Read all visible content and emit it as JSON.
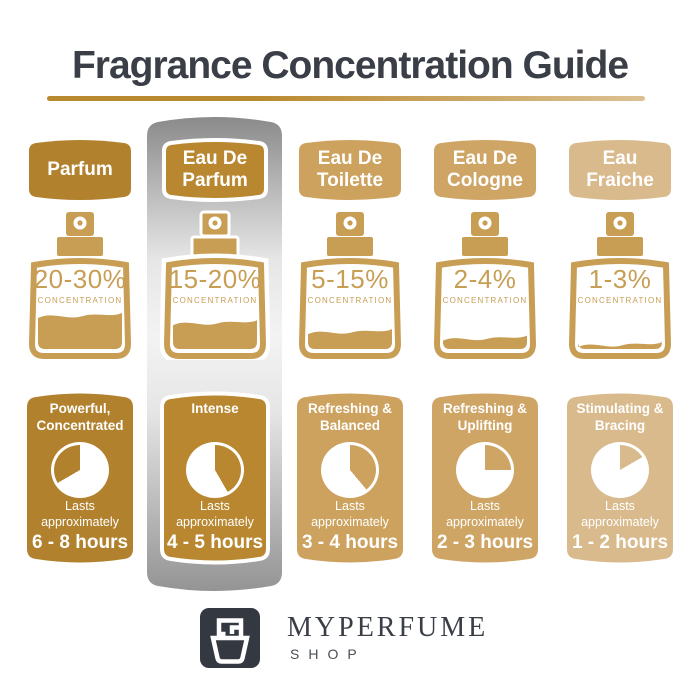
{
  "title": "Fragrance Concentration Guide",
  "colors": {
    "ink": "#3A3E46",
    "line_a": "#B9892F",
    "line_b": "#DCC192",
    "bottle": "#C89E55",
    "logo_bg": "#343841",
    "hl_top": "#8A8A8A",
    "hl_soft": "#E6E6E6",
    "hl_light": "#F3F3F3",
    "hl_bottom": "#949494"
  },
  "columns": [
    {
      "name": "Parfum",
      "color": "#B1812D",
      "highlighted": false,
      "bottle": {
        "percent": "20-30%",
        "concentration_label": "CONCENTRATION",
        "fill_percent": 42
      },
      "card": {
        "trait": "Powerful, Concentrated",
        "lasts": "Lasts approximately",
        "duration": "6 - 8 hours",
        "clock_notch": {
          "start_deg": 240,
          "end_deg": 360
        }
      }
    },
    {
      "name": "Eau De Parfum",
      "color": "#B8872F",
      "highlighted": true,
      "bottle": {
        "percent": "15-20%",
        "concentration_label": "CONCENTRATION",
        "fill_percent": 33
      },
      "card": {
        "trait": "Intense",
        "lasts": "Lasts approximately",
        "duration": "4 - 5 hours",
        "clock_notch": {
          "start_deg": 0,
          "end_deg": 150
        }
      }
    },
    {
      "name": "Eau De Toilette",
      "color": "#CDA25E",
      "highlighted": false,
      "bottle": {
        "percent": "5-15%",
        "concentration_label": "CONCENTRATION",
        "fill_percent": 22
      },
      "card": {
        "trait": "Refreshing & Balanced",
        "lasts": "Lasts approximately",
        "duration": "3 - 4 hours",
        "clock_notch": {
          "start_deg": 0,
          "end_deg": 140
        }
      }
    },
    {
      "name": "Eau De Cologne",
      "color": "#CFA566",
      "highlighted": false,
      "bottle": {
        "percent": "2-4%",
        "concentration_label": "CONCENTRATION",
        "fill_percent": 14
      },
      "card": {
        "trait": "Refreshing & Uplifting",
        "lasts": "Lasts approximately",
        "duration": "2 - 3 hours",
        "clock_notch": {
          "start_deg": 0,
          "end_deg": 90
        }
      }
    },
    {
      "name": "Eau Fraiche",
      "color": "#D9BA8C",
      "highlighted": false,
      "bottle": {
        "percent": "1-3%",
        "concentration_label": "CONCENTRATION",
        "fill_percent": 6
      },
      "card": {
        "trait": "Stimulating & Bracing",
        "lasts": "Lasts approximately",
        "duration": "1 - 2 hours",
        "clock_notch": {
          "start_deg": 0,
          "end_deg": 60
        }
      }
    }
  ],
  "footer": {
    "brand": "MYPERFUME",
    "sub": "SHOP"
  }
}
